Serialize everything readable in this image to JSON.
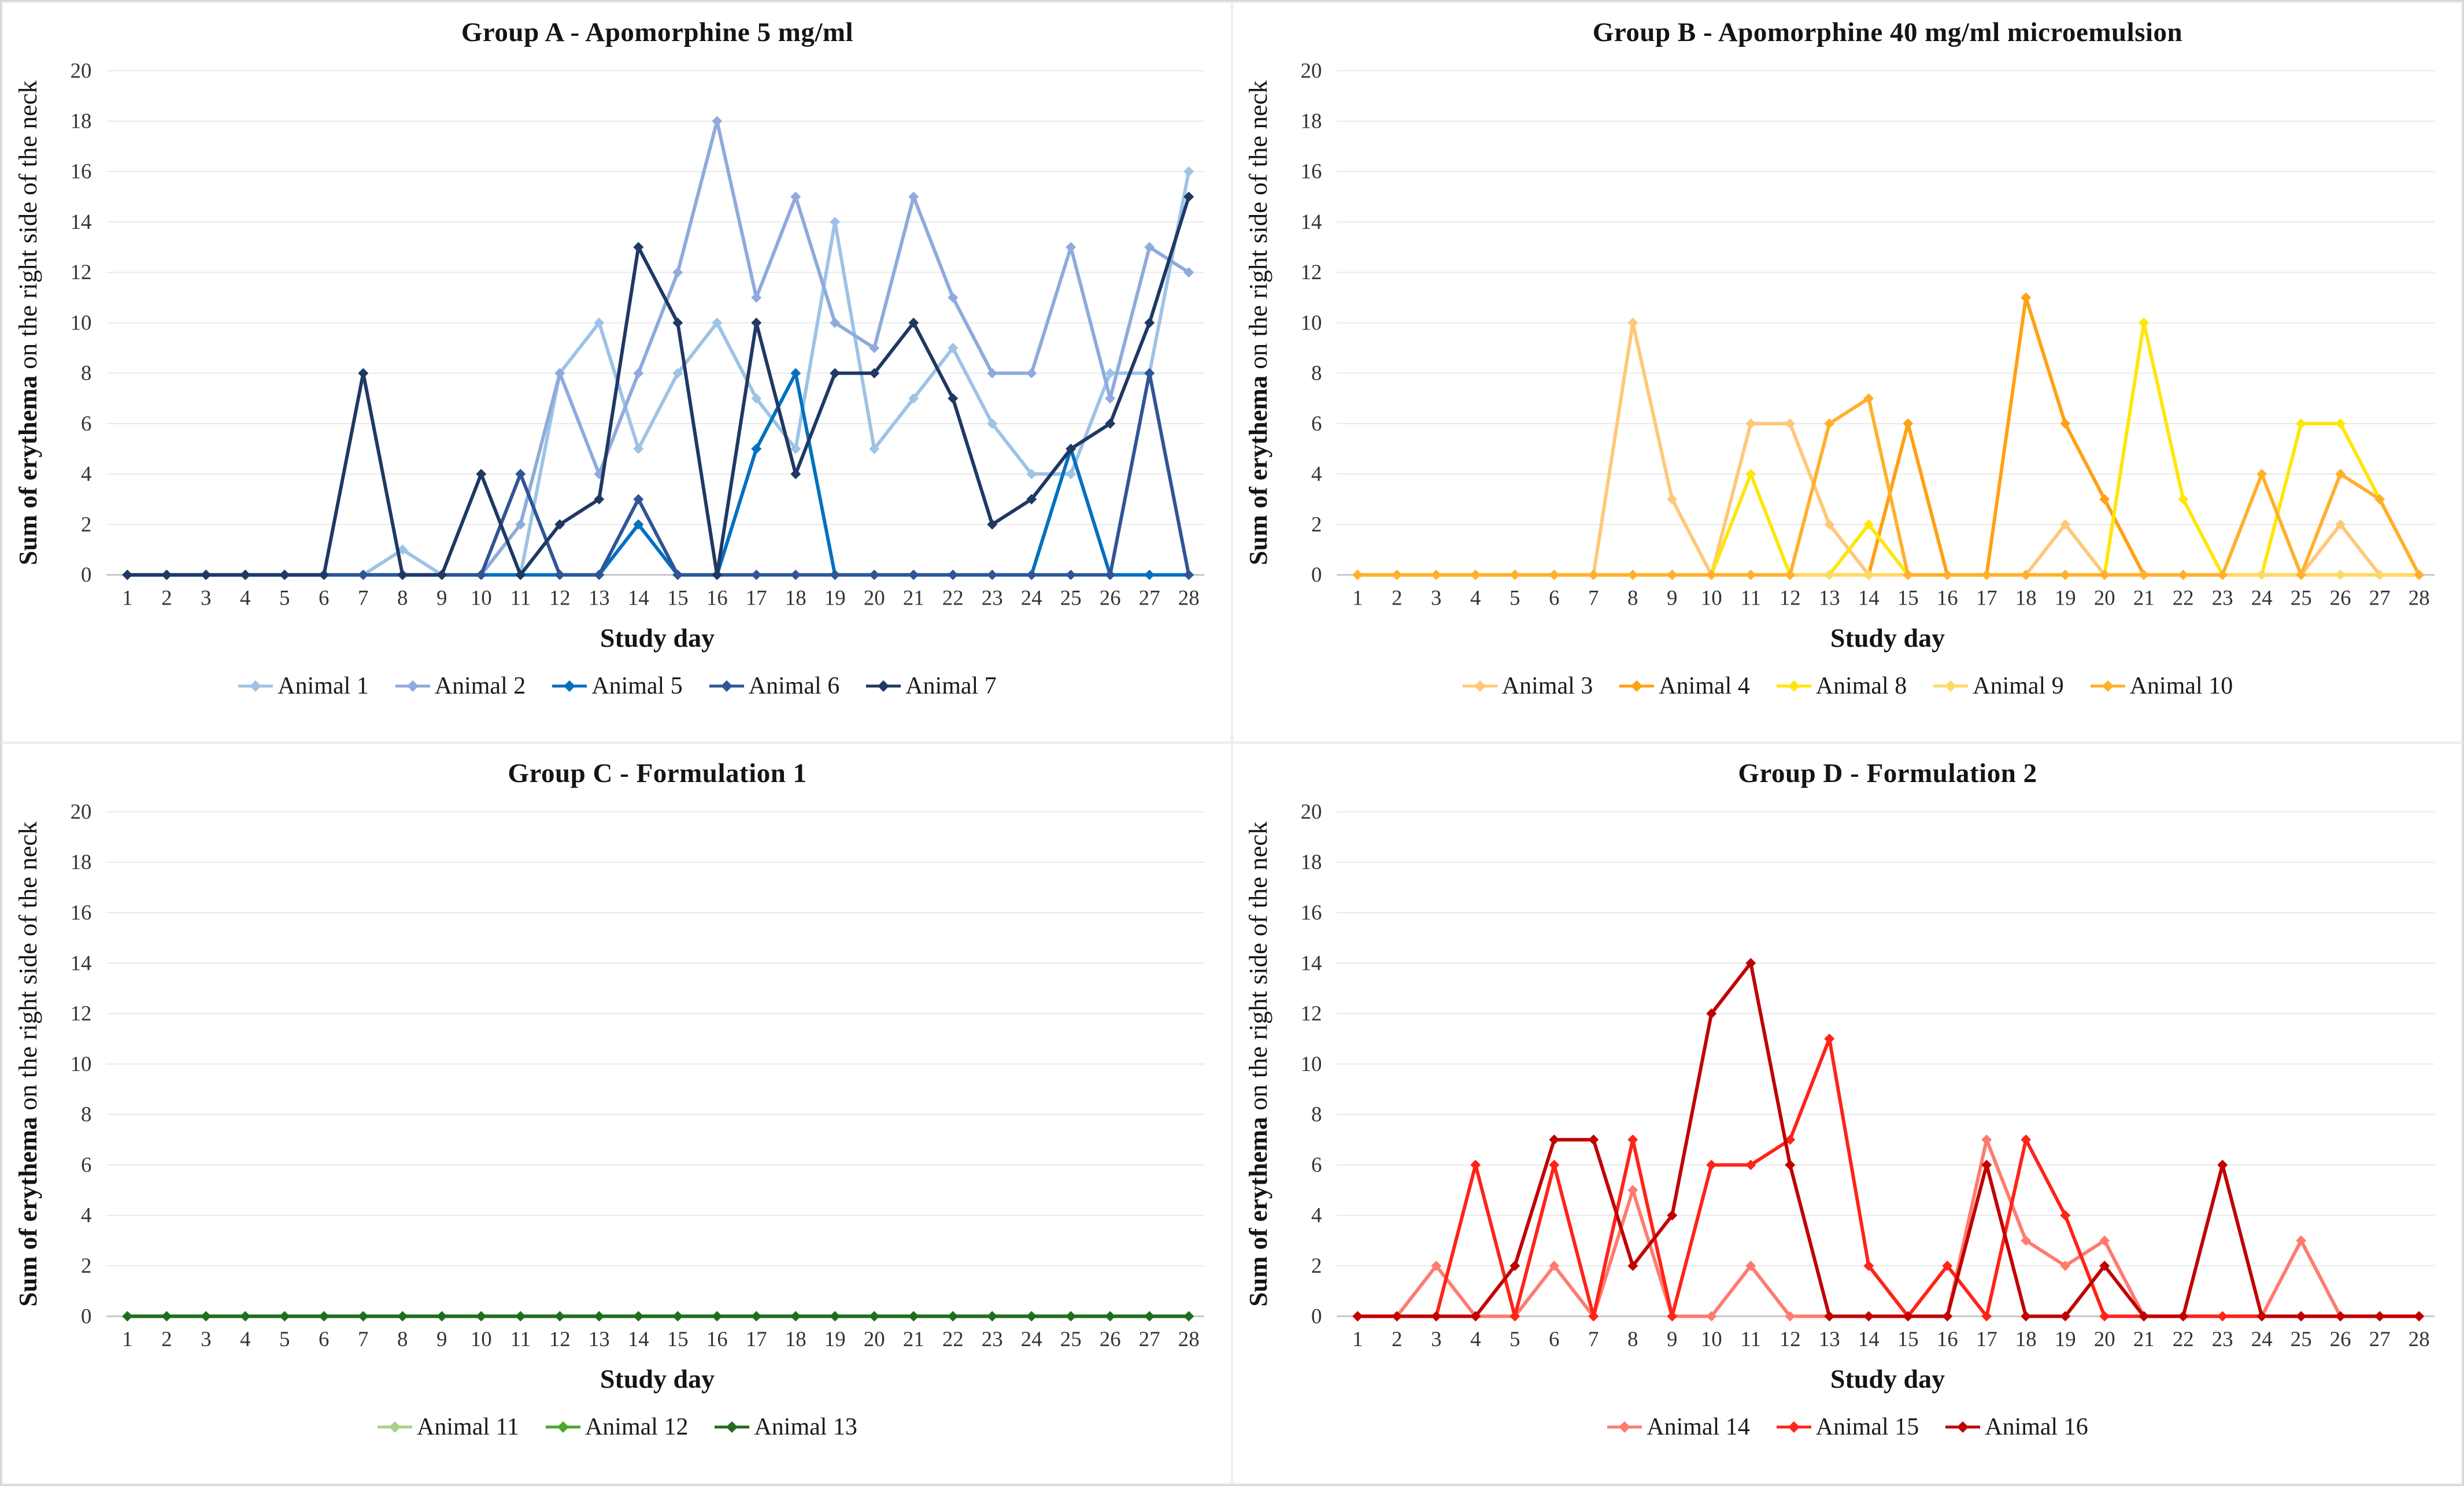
{
  "page": {
    "background": "#ffffff",
    "frame_color": "#d9d9d9",
    "gridline_color": "#e9e9e9",
    "axis_line_color": "#c7c7c7",
    "tick_text_color": "#333333"
  },
  "shared": {
    "ylabel_bold": "Sum of erythema",
    "ylabel_rest": " on the right side of the neck",
    "xlabel": "Study day",
    "ylim": [
      0,
      20
    ],
    "ytick_step": 2,
    "categories": [
      1,
      2,
      3,
      4,
      5,
      6,
      7,
      8,
      9,
      10,
      11,
      12,
      13,
      14,
      15,
      16,
      17,
      18,
      19,
      20,
      21,
      22,
      23,
      24,
      25,
      26,
      27,
      28
    ]
  },
  "chart_data": [
    {
      "type": "line",
      "title": "Group A - Apomorphine 5 mg/ml",
      "xlabel": "Study day",
      "ylabel": "Sum of erythema on the right side of the neck",
      "ylim": [
        0,
        20
      ],
      "grid": true,
      "legend_position": "bottom",
      "categories": [
        1,
        2,
        3,
        4,
        5,
        6,
        7,
        8,
        9,
        10,
        11,
        12,
        13,
        14,
        15,
        16,
        17,
        18,
        19,
        20,
        21,
        22,
        23,
        24,
        25,
        26,
        27,
        28
      ],
      "series": [
        {
          "name": "Animal 1",
          "color": "#9DC3E6",
          "values": [
            0,
            0,
            0,
            0,
            0,
            0,
            0,
            1,
            0,
            0,
            0,
            8,
            10,
            5,
            8,
            10,
            7,
            5,
            14,
            5,
            7,
            9,
            6,
            4,
            4,
            8,
            8,
            16
          ]
        },
        {
          "name": "Animal 2",
          "color": "#8FAADC",
          "values": [
            0,
            0,
            0,
            0,
            0,
            0,
            0,
            0,
            0,
            0,
            2,
            8,
            4,
            8,
            12,
            18,
            11,
            15,
            10,
            9,
            15,
            11,
            8,
            8,
            13,
            7,
            13,
            12
          ]
        },
        {
          "name": "Animal 5",
          "color": "#0070C0",
          "values": [
            0,
            0,
            0,
            0,
            0,
            0,
            0,
            0,
            0,
            0,
            0,
            0,
            0,
            2,
            0,
            0,
            5,
            8,
            0,
            0,
            0,
            0,
            0,
            0,
            5,
            0,
            0,
            0
          ]
        },
        {
          "name": "Animal 6",
          "color": "#2F5597",
          "values": [
            0,
            0,
            0,
            0,
            0,
            0,
            0,
            0,
            0,
            0,
            4,
            0,
            0,
            3,
            0,
            0,
            0,
            0,
            0,
            0,
            0,
            0,
            0,
            0,
            0,
            0,
            8,
            0
          ]
        },
        {
          "name": "Animal 7",
          "color": "#1F3864",
          "values": [
            0,
            0,
            0,
            0,
            0,
            0,
            8,
            0,
            0,
            4,
            0,
            2,
            3,
            13,
            10,
            0,
            10,
            4,
            8,
            8,
            10,
            7,
            2,
            3,
            5,
            6,
            10,
            15
          ]
        }
      ]
    },
    {
      "type": "line",
      "title": "Group B - Apomorphine 40 mg/ml microemulsion",
      "xlabel": "Study day",
      "ylabel": "Sum of erythema on the right side of the neck",
      "ylim": [
        0,
        20
      ],
      "grid": true,
      "legend_position": "bottom",
      "categories": [
        1,
        2,
        3,
        4,
        5,
        6,
        7,
        8,
        9,
        10,
        11,
        12,
        13,
        14,
        15,
        16,
        17,
        18,
        19,
        20,
        21,
        22,
        23,
        24,
        25,
        26,
        27,
        28
      ],
      "series": [
        {
          "name": "Animal 3",
          "color": "#FFC878",
          "values": [
            0,
            0,
            0,
            0,
            0,
            0,
            0,
            10,
            3,
            0,
            6,
            6,
            2,
            0,
            0,
            0,
            0,
            0,
            2,
            0,
            0,
            0,
            0,
            0,
            0,
            2,
            0,
            0
          ]
        },
        {
          "name": "Animal 4",
          "color": "#FFA114",
          "values": [
            0,
            0,
            0,
            0,
            0,
            0,
            0,
            0,
            0,
            0,
            0,
            0,
            0,
            0,
            6,
            0,
            0,
            11,
            6,
            3,
            0,
            0,
            0,
            0,
            0,
            0,
            0,
            0
          ]
        },
        {
          "name": "Animal 8",
          "color": "#FFE60A",
          "values": [
            0,
            0,
            0,
            0,
            0,
            0,
            0,
            0,
            0,
            0,
            4,
            0,
            0,
            2,
            0,
            0,
            0,
            0,
            0,
            0,
            10,
            3,
            0,
            0,
            6,
            6,
            3,
            0
          ]
        },
        {
          "name": "Animal 9",
          "color": "#FFD966",
          "values": [
            0,
            0,
            0,
            0,
            0,
            0,
            0,
            0,
            0,
            0,
            0,
            0,
            0,
            0,
            0,
            0,
            0,
            0,
            0,
            0,
            0,
            0,
            0,
            0,
            0,
            0,
            0,
            0
          ]
        },
        {
          "name": "Animal 10",
          "color": "#FFB02B",
          "values": [
            0,
            0,
            0,
            0,
            0,
            0,
            0,
            0,
            0,
            0,
            0,
            0,
            6,
            7,
            0,
            0,
            0,
            0,
            0,
            0,
            0,
            0,
            0,
            4,
            0,
            4,
            3,
            0
          ]
        }
      ]
    },
    {
      "type": "line",
      "title": "Group C - Formulation 1",
      "xlabel": "Study day",
      "ylabel": "Sum of erythema on the right side of the neck",
      "ylim": [
        0,
        20
      ],
      "grid": true,
      "legend_position": "bottom",
      "categories": [
        1,
        2,
        3,
        4,
        5,
        6,
        7,
        8,
        9,
        10,
        11,
        12,
        13,
        14,
        15,
        16,
        17,
        18,
        19,
        20,
        21,
        22,
        23,
        24,
        25,
        26,
        27,
        28
      ],
      "series": [
        {
          "name": "Animal 11",
          "color": "#A9D18E",
          "values": [
            0,
            0,
            0,
            0,
            0,
            0,
            0,
            0,
            0,
            0,
            0,
            0,
            0,
            0,
            0,
            0,
            0,
            0,
            0,
            0,
            0,
            0,
            0,
            0,
            0,
            0,
            0,
            0
          ]
        },
        {
          "name": "Animal 12",
          "color": "#4EA72E",
          "values": [
            0,
            0,
            0,
            0,
            0,
            0,
            0,
            0,
            0,
            0,
            0,
            0,
            0,
            0,
            0,
            0,
            0,
            0,
            0,
            0,
            0,
            0,
            0,
            0,
            0,
            0,
            0,
            0
          ]
        },
        {
          "name": "Animal 13",
          "color": "#1F6E1F",
          "values": [
            0,
            0,
            0,
            0,
            0,
            0,
            0,
            0,
            0,
            0,
            0,
            0,
            0,
            0,
            0,
            0,
            0,
            0,
            0,
            0,
            0,
            0,
            0,
            0,
            0,
            0,
            0,
            0
          ]
        }
      ]
    },
    {
      "type": "line",
      "title": "Group D - Formulation 2",
      "xlabel": "Study day",
      "ylabel": "Sum of erythema on the right side of the neck",
      "ylim": [
        0,
        20
      ],
      "grid": true,
      "legend_position": "bottom",
      "categories": [
        1,
        2,
        3,
        4,
        5,
        6,
        7,
        8,
        9,
        10,
        11,
        12,
        13,
        14,
        15,
        16,
        17,
        18,
        19,
        20,
        21,
        22,
        23,
        24,
        25,
        26,
        27,
        28
      ],
      "series": [
        {
          "name": "Animal 14",
          "color": "#FF7B6F",
          "values": [
            0,
            0,
            2,
            0,
            0,
            2,
            0,
            5,
            0,
            0,
            2,
            0,
            0,
            0,
            0,
            0,
            7,
            3,
            2,
            3,
            0,
            0,
            0,
            0,
            3,
            0,
            0,
            0
          ]
        },
        {
          "name": "Animal 15",
          "color": "#FF2318",
          "values": [
            0,
            0,
            0,
            6,
            0,
            6,
            0,
            7,
            0,
            6,
            6,
            7,
            11,
            2,
            0,
            2,
            0,
            7,
            4,
            0,
            0,
            0,
            0,
            0,
            0,
            0,
            0,
            0
          ]
        },
        {
          "name": "Animal 16",
          "color": "#C00000",
          "values": [
            0,
            0,
            0,
            0,
            2,
            7,
            7,
            2,
            4,
            12,
            14,
            6,
            0,
            0,
            0,
            0,
            6,
            0,
            0,
            2,
            0,
            0,
            6,
            0,
            0,
            0,
            0,
            0
          ]
        }
      ]
    }
  ]
}
